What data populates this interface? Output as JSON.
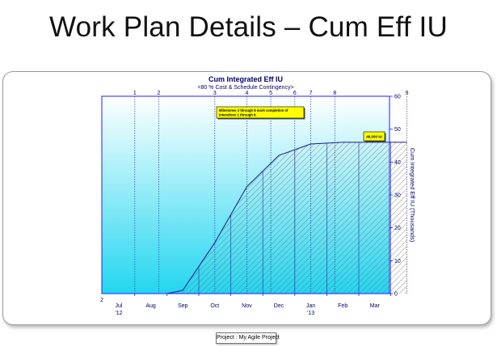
{
  "slide": {
    "title": "Work Plan Details – Cum Eff IU",
    "project_label": "Project : My Agile Project"
  },
  "chart_data": {
    "type": "area",
    "title": "Cum Integrated Eff IU",
    "subtitle": "<80 % Cost & Schedule Contingency>",
    "ylabel": "Cum Integrated Eff IU (Thousands)",
    "ylim": [
      0,
      60
    ],
    "yticks": [
      0,
      10,
      20,
      30,
      40,
      50,
      60
    ],
    "x_start_tick_label": "2",
    "x_months": [
      "Jul",
      "Aug",
      "Sep",
      "Oct",
      "Nov",
      "Dec",
      "Jan",
      "Feb",
      "Mar"
    ],
    "x_year_labels": [
      {
        "month": "Jul",
        "label": "'12"
      },
      {
        "month": "Jan",
        "label": "'13"
      }
    ],
    "milestones": [
      {
        "label": "1",
        "month_pos": 0.5
      },
      {
        "label": "2",
        "month_pos": 1.25
      },
      {
        "label": "3",
        "month_pos": 3.0
      },
      {
        "label": "4",
        "month_pos": 4.0
      },
      {
        "label": "5",
        "month_pos": 4.75
      },
      {
        "label": "6",
        "month_pos": 5.5
      },
      {
        "label": "7",
        "month_pos": 6.0
      },
      {
        "label": "8",
        "month_pos": 6.75
      },
      {
        "label": "9",
        "month_pos": 9.0
      }
    ],
    "series": [
      {
        "points": [
          [
            1.5,
            0
          ],
          [
            2.0,
            1
          ],
          [
            3.0,
            15.5
          ],
          [
            4.0,
            32.5
          ],
          [
            5.0,
            42
          ],
          [
            6.0,
            45.5
          ],
          [
            7.0,
            46
          ],
          [
            8.0,
            46
          ],
          [
            9.0,
            46
          ]
        ]
      }
    ],
    "annotations": [
      {
        "text": "Milestones 3 through 8 mark completion of Interations 1 through 6."
      },
      {
        "text": "46,000 IU"
      }
    ],
    "colors": {
      "axis": "#2020ff",
      "milestone_line": "#3a3aa8",
      "annotation_bg": "#ffff00",
      "fill_top": "#ffffff",
      "fill_bottom": "#22d6f0"
    }
  }
}
